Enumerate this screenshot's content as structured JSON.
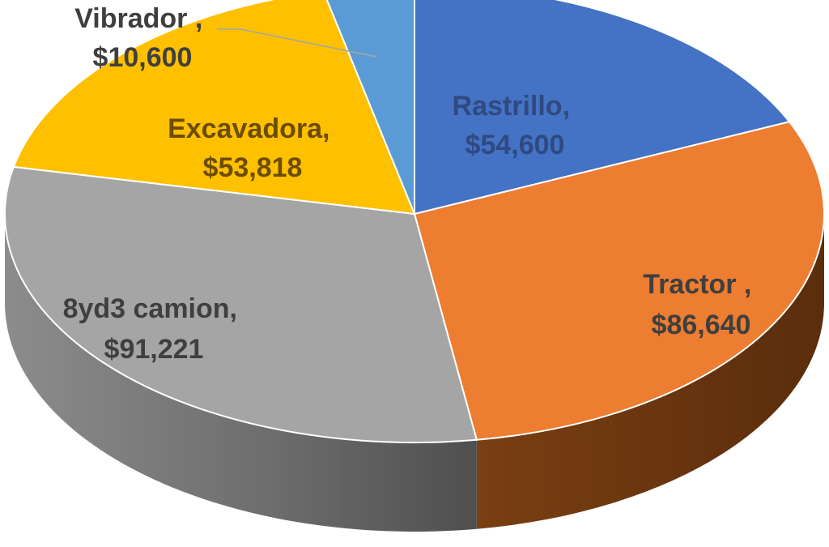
{
  "chart_data": {
    "type": "pie",
    "style": "3d",
    "title": "",
    "legend": "none",
    "slices": [
      {
        "name": "Rastrillo",
        "label_name": "Rastrillo,",
        "label_value": "$54,600",
        "value": 54600,
        "color": "#4472c4",
        "label_color": "#2f4a80"
      },
      {
        "name": "Tractor",
        "label_name": "Tractor ,",
        "label_value": "$86,640",
        "value": 86640,
        "color": "#ed7d31",
        "label_color": "#3f3f3f"
      },
      {
        "name": "8yd3 camion",
        "label_name": "8yd3 camion,",
        "label_value": "$91,221",
        "value": 91221,
        "color": "#a5a5a5",
        "label_color": "#3f3f3f"
      },
      {
        "name": "Excavadora",
        "label_name": "Excavadora,",
        "label_value": "$53,818",
        "value": 53818,
        "color": "#ffc000",
        "label_color": "#6b4c00"
      },
      {
        "name": "Vibrador",
        "label_name": "Vibrador ,",
        "label_value": "$10,600",
        "value": 10600,
        "color": "#5b9bd5",
        "label_color": "#3f3f3f"
      }
    ]
  }
}
